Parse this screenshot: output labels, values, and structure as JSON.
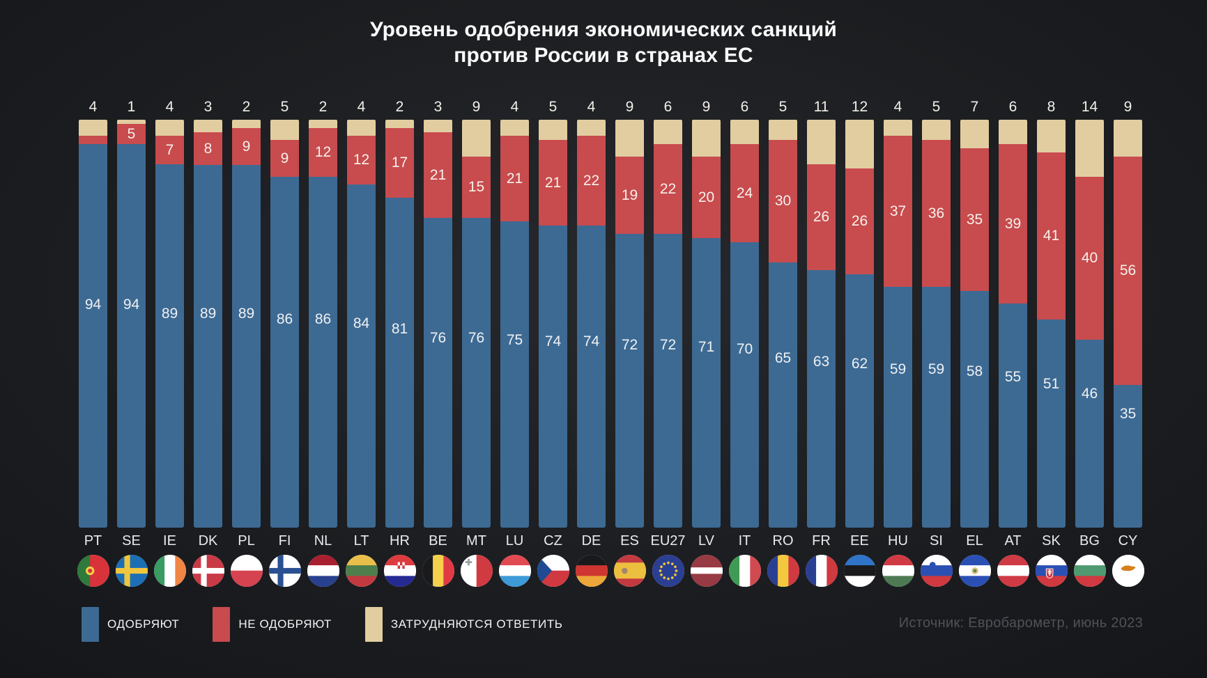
{
  "title": "Уровень одобрения экономических санкций\nпротив России в странах ЕС",
  "source": "Источник: Евробарометр, июнь 2023",
  "colors": {
    "approve": "#3d6a93",
    "disapprove": "#c84b4e",
    "unsure": "#e2cda0",
    "background": "#1b1d20",
    "title_text": "#fbfbfb",
    "source_text": "#4e5258"
  },
  "legend": [
    {
      "label": "ОДОБРЯЮТ",
      "color": "#3d6a93"
    },
    {
      "label": "НЕ ОДОБРЯЮТ",
      "color": "#c84b4e"
    },
    {
      "label": "ЗАТРУДНЯЮТСЯ ОТВЕТИТЬ",
      "color": "#e2cda0"
    }
  ],
  "chart_data": {
    "type": "bar",
    "stacked": true,
    "unit": "%",
    "title": "Уровень одобрения экономических санкций против России в странах ЕС",
    "ylim": [
      0,
      100
    ],
    "grid": false,
    "legend_position": "bottom",
    "categories": [
      "PT",
      "SE",
      "IE",
      "DK",
      "PL",
      "FI",
      "NL",
      "LT",
      "HR",
      "BE",
      "MT",
      "LU",
      "CZ",
      "DE",
      "ES",
      "EU27",
      "LV",
      "IT",
      "RO",
      "FR",
      "EE",
      "HU",
      "SI",
      "EL",
      "AT",
      "SK",
      "BG",
      "CY"
    ],
    "series": [
      {
        "name": "ОДОБРЯЮТ",
        "color": "#3d6a93",
        "values": [
          94,
          94,
          89,
          89,
          89,
          86,
          86,
          84,
          81,
          76,
          76,
          75,
          74,
          74,
          72,
          72,
          71,
          70,
          65,
          63,
          62,
          59,
          59,
          58,
          55,
          51,
          46,
          35
        ]
      },
      {
        "name": "НЕ ОДОБРЯЮТ",
        "color": "#c84b4e",
        "values": [
          2,
          5,
          7,
          8,
          9,
          9,
          12,
          12,
          17,
          21,
          15,
          21,
          21,
          22,
          19,
          22,
          20,
          24,
          30,
          26,
          26,
          37,
          36,
          35,
          39,
          41,
          40,
          56
        ]
      },
      {
        "name": "ЗАТРУДНЯЮТСЯ ОТВЕТИТЬ",
        "color": "#e2cda0",
        "values": [
          4,
          1,
          4,
          3,
          2,
          5,
          2,
          4,
          2,
          3,
          9,
          4,
          5,
          4,
          9,
          6,
          9,
          6,
          5,
          11,
          12,
          4,
          5,
          7,
          6,
          8,
          14,
          9
        ]
      }
    ]
  },
  "countries": [
    {
      "code": "PT",
      "approve": 94,
      "disapprove": 2,
      "unsure": 4,
      "flag": {
        "o": "v",
        "s": [
          [
            "#2f7a3b",
            40
          ],
          [
            "#d8333a",
            60
          ]
        ],
        "x": [
          [
            "dot",
            "#f3cf45",
            19,
            24,
            6.5
          ],
          [
            "dot",
            "#d8333a",
            19,
            24,
            3.2
          ]
        ]
      }
    },
    {
      "code": "SE",
      "approve": 94,
      "disapprove": 5,
      "unsure": 1,
      "flag": {
        "o": "h",
        "s": [
          [
            "#1c6fb5",
            100
          ]
        ],
        "x": [
          [
            "nordic",
            "#f0c63f"
          ]
        ]
      }
    },
    {
      "code": "IE",
      "approve": 89,
      "disapprove": 7,
      "unsure": 4,
      "flag": {
        "o": "v",
        "s": [
          [
            "#3a9b63",
            33.4
          ],
          [
            "#ffffff",
            33.2
          ],
          [
            "#f08544",
            33.4
          ]
        ]
      }
    },
    {
      "code": "DK",
      "approve": 89,
      "disapprove": 8,
      "unsure": 3,
      "flag": {
        "o": "h",
        "s": [
          [
            "#c93a47",
            100
          ]
        ],
        "x": [
          [
            "nordic",
            "#ffffff"
          ]
        ]
      }
    },
    {
      "code": "PL",
      "approve": 89,
      "disapprove": 9,
      "unsure": 2,
      "flag": {
        "o": "h",
        "s": [
          [
            "#ffffff",
            50
          ],
          [
            "#d64350",
            50
          ]
        ]
      }
    },
    {
      "code": "FI",
      "approve": 86,
      "disapprove": 9,
      "unsure": 5,
      "flag": {
        "o": "h",
        "s": [
          [
            "#ffffff",
            100
          ]
        ],
        "x": [
          [
            "nordic",
            "#2a5091"
          ]
        ]
      }
    },
    {
      "code": "NL",
      "approve": 86,
      "disapprove": 12,
      "unsure": 2,
      "flag": {
        "o": "h",
        "s": [
          [
            "#a8202f",
            33.4
          ],
          [
            "#ffffff",
            33.2
          ],
          [
            "#27418f",
            33.4
          ]
        ]
      }
    },
    {
      "code": "LT",
      "approve": 84,
      "disapprove": 12,
      "unsure": 4,
      "flag": {
        "o": "h",
        "s": [
          [
            "#e8bf4a",
            33.4
          ],
          [
            "#4e7e4b",
            33.2
          ],
          [
            "#c23a40",
            33.4
          ]
        ]
      }
    },
    {
      "code": "HR",
      "approve": 81,
      "disapprove": 17,
      "unsure": 2,
      "flag": {
        "o": "h",
        "s": [
          [
            "#dd3b3f",
            33.4
          ],
          [
            "#ffffff",
            33.2
          ],
          [
            "#252a93",
            33.4
          ]
        ],
        "x": [
          [
            "checker",
            24,
            16
          ]
        ]
      }
    },
    {
      "code": "BE",
      "approve": 76,
      "disapprove": 21,
      "unsure": 3,
      "flag": {
        "o": "v",
        "s": [
          [
            "#1a1a1c",
            33.4
          ],
          [
            "#f5d14b",
            33.2
          ],
          [
            "#e23a44",
            33.4
          ]
        ]
      }
    },
    {
      "code": "MT",
      "approve": 76,
      "disapprove": 15,
      "unsure": 9,
      "flag": {
        "o": "v",
        "s": [
          [
            "#ffffff",
            50
          ],
          [
            "#d03b42",
            50
          ]
        ],
        "x": [
          [
            "cross",
            "#9aa0a6",
            12,
            11
          ]
        ]
      }
    },
    {
      "code": "LU",
      "approve": 75,
      "disapprove": 21,
      "unsure": 4,
      "flag": {
        "o": "h",
        "s": [
          [
            "#e24a52",
            33.4
          ],
          [
            "#ffffff",
            33.2
          ],
          [
            "#3e9bd8",
            33.4
          ]
        ]
      }
    },
    {
      "code": "CZ",
      "approve": 74,
      "disapprove": 21,
      "unsure": 5,
      "flag": {
        "o": "h",
        "s": [
          [
            "#ffffff",
            50
          ],
          [
            "#d0393f",
            50
          ]
        ],
        "x": [
          [
            "tri",
            "#1f4a94"
          ]
        ]
      }
    },
    {
      "code": "DE",
      "approve": 74,
      "disapprove": 22,
      "unsure": 4,
      "flag": {
        "o": "h",
        "s": [
          [
            "#1a1a1c",
            33.4
          ],
          [
            "#ce3430",
            33.2
          ],
          [
            "#eda63a",
            33.4
          ]
        ]
      }
    },
    {
      "code": "ES",
      "approve": 72,
      "disapprove": 19,
      "unsure": 9,
      "flag": {
        "o": "h",
        "s": [
          [
            "#c23a40",
            25
          ],
          [
            "#ecbf3e",
            50
          ],
          [
            "#c23a40",
            25
          ]
        ],
        "x": [
          [
            "dot",
            "#a3866b",
            16,
            24,
            4.5
          ]
        ]
      }
    },
    {
      "code": "EU27",
      "approve": 72,
      "disapprove": 22,
      "unsure": 6,
      "flag": {
        "o": "h",
        "s": [
          [
            "#2b3f92",
            100
          ]
        ],
        "x": [
          [
            "stars",
            "#f0c63f"
          ]
        ]
      }
    },
    {
      "code": "LV",
      "approve": 71,
      "disapprove": 20,
      "unsure": 9,
      "flag": {
        "o": "h",
        "s": [
          [
            "#973a44",
            40
          ],
          [
            "#ffffff",
            20
          ],
          [
            "#973a44",
            40
          ]
        ]
      }
    },
    {
      "code": "IT",
      "approve": 70,
      "disapprove": 24,
      "unsure": 6,
      "flag": {
        "o": "v",
        "s": [
          [
            "#3f9b54",
            33.4
          ],
          [
            "#ffffff",
            33.2
          ],
          [
            "#d04a4f",
            33.4
          ]
        ]
      }
    },
    {
      "code": "RO",
      "approve": 65,
      "disapprove": 30,
      "unsure": 5,
      "flag": {
        "o": "v",
        "s": [
          [
            "#2b3f92",
            33.4
          ],
          [
            "#f3c83e",
            33.2
          ],
          [
            "#d0393f",
            33.4
          ]
        ]
      }
    },
    {
      "code": "FR",
      "approve": 63,
      "disapprove": 26,
      "unsure": 11,
      "flag": {
        "o": "v",
        "s": [
          [
            "#2b3f92",
            33.4
          ],
          [
            "#ffffff",
            33.2
          ],
          [
            "#d0393f",
            33.4
          ]
        ]
      }
    },
    {
      "code": "EE",
      "approve": 62,
      "disapprove": 26,
      "unsure": 12,
      "flag": {
        "o": "h",
        "s": [
          [
            "#2f74c9",
            33.4
          ],
          [
            "#1a1a1c",
            33.2
          ],
          [
            "#ffffff",
            33.4
          ]
        ]
      }
    },
    {
      "code": "HU",
      "approve": 59,
      "disapprove": 37,
      "unsure": 4,
      "flag": {
        "o": "h",
        "s": [
          [
            "#cf3a44",
            33.4
          ],
          [
            "#ffffff",
            33.2
          ],
          [
            "#4d7a52",
            33.4
          ]
        ]
      }
    },
    {
      "code": "SI",
      "approve": 59,
      "disapprove": 36,
      "unsure": 5,
      "flag": {
        "o": "h",
        "s": [
          [
            "#ffffff",
            33.4
          ],
          [
            "#2b50b4",
            33.2
          ],
          [
            "#d0393f",
            33.4
          ]
        ],
        "x": [
          [
            "dot",
            "#2b50b4",
            18,
            15,
            4.5
          ]
        ]
      }
    },
    {
      "code": "EL",
      "approve": 58,
      "disapprove": 35,
      "unsure": 7,
      "flag": {
        "o": "h",
        "s": [
          [
            "#2b50b4",
            33.4
          ],
          [
            "#ffffff",
            33.2
          ],
          [
            "#2b50b4",
            33.4
          ]
        ],
        "x": [
          [
            "dot",
            "#d9c27a",
            24,
            24,
            5
          ],
          [
            "dot",
            "#57884f",
            24,
            24,
            2.4
          ]
        ]
      }
    },
    {
      "code": "AT",
      "approve": 55,
      "disapprove": 39,
      "unsure": 6,
      "flag": {
        "o": "h",
        "s": [
          [
            "#cf3a44",
            33.4
          ],
          [
            "#ffffff",
            33.2
          ],
          [
            "#cf3a44",
            33.4
          ]
        ]
      }
    },
    {
      "code": "SK",
      "approve": 51,
      "disapprove": 41,
      "unsure": 8,
      "flag": {
        "o": "h",
        "s": [
          [
            "#ffffff",
            33.4
          ],
          [
            "#2b50b4",
            33.2
          ],
          [
            "#d0393f",
            33.4
          ]
        ],
        "x": [
          [
            "skshield"
          ]
        ]
      }
    },
    {
      "code": "BG",
      "approve": 46,
      "disapprove": 40,
      "unsure": 14,
      "flag": {
        "o": "h",
        "s": [
          [
            "#ffffff",
            33.4
          ],
          [
            "#4f9a71",
            33.2
          ],
          [
            "#d0393f",
            33.4
          ]
        ]
      }
    },
    {
      "code": "CY",
      "approve": 35,
      "disapprove": 56,
      "unsure": 9,
      "flag": {
        "o": "h",
        "s": [
          [
            "#ffffff",
            100
          ]
        ],
        "x": [
          [
            "island",
            "#d57f1e"
          ]
        ]
      }
    }
  ]
}
